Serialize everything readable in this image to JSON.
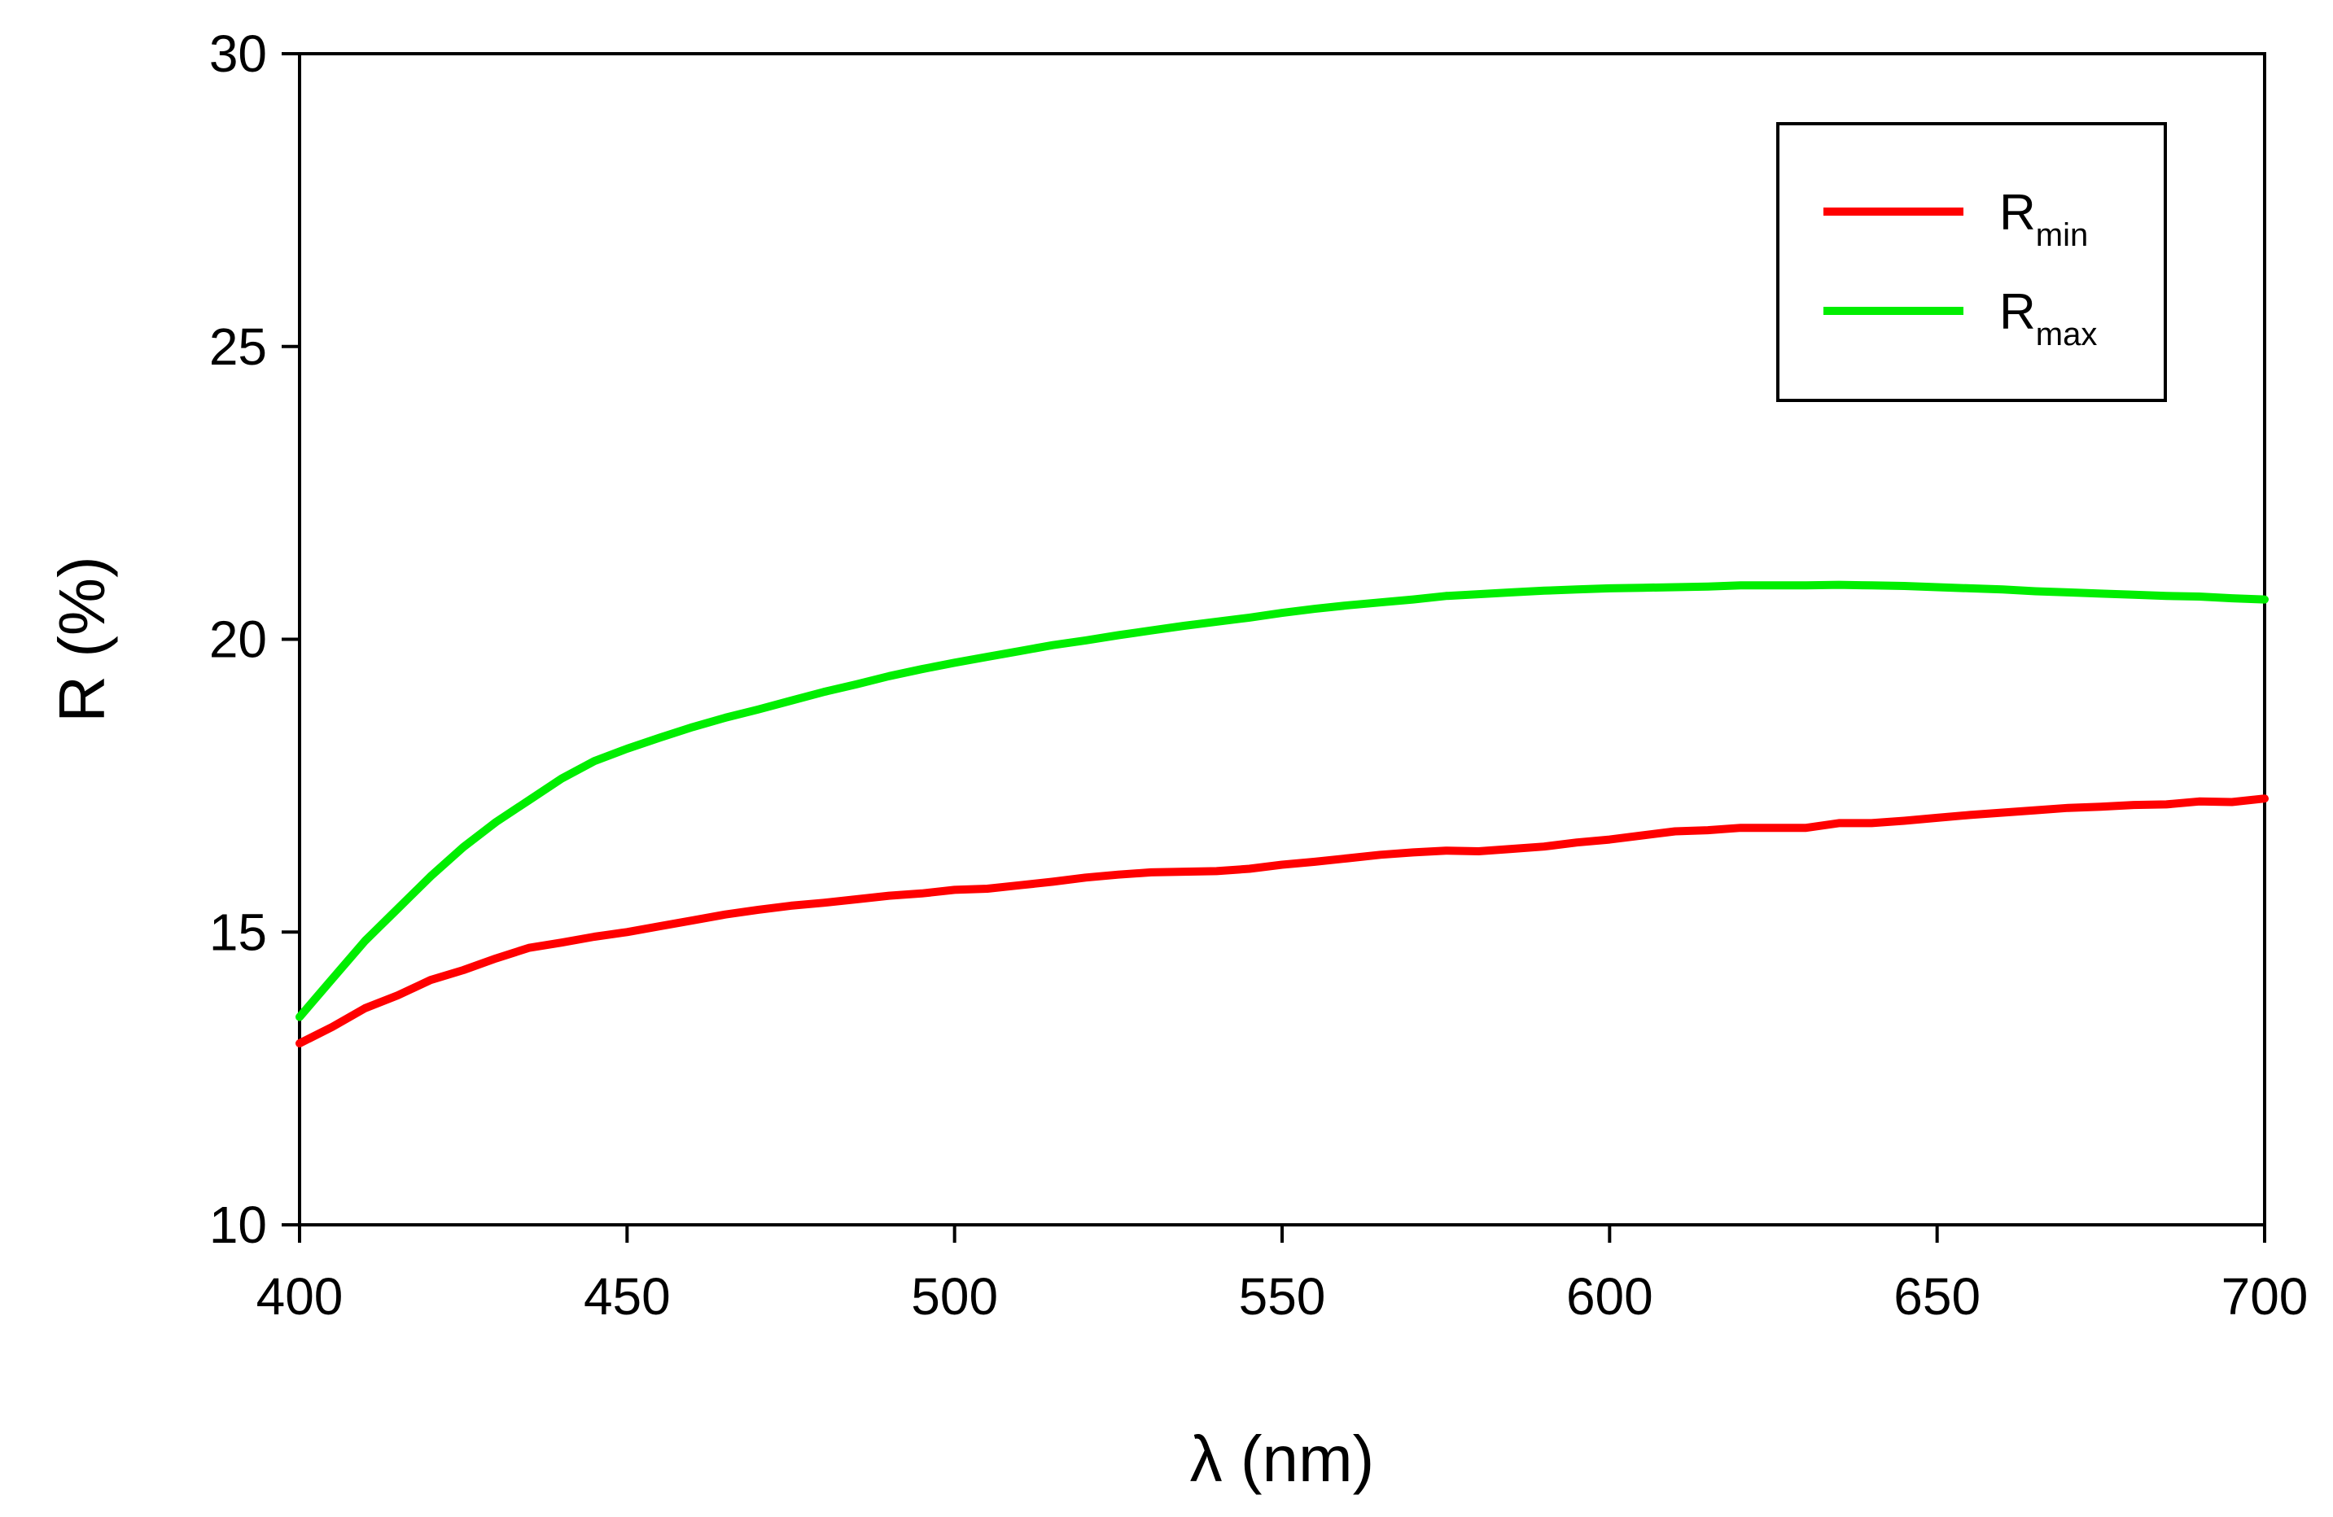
{
  "chart_data": {
    "type": "line",
    "xlabel": "λ (nm)",
    "ylabel": "R (%)",
    "xlim": [
      400,
      700
    ],
    "ylim": [
      10,
      30
    ],
    "xticks": [
      400,
      450,
      500,
      550,
      600,
      650,
      700
    ],
    "yticks": [
      10,
      15,
      20,
      25,
      30
    ],
    "grid": false,
    "legend_position": "top-right",
    "legend_entries": [
      {
        "base": "R",
        "sub": "min",
        "color": "#ff0000"
      },
      {
        "base": "R",
        "sub": "max",
        "color": "#00ee00"
      }
    ],
    "series": [
      {
        "name": "Rmin",
        "color": "#ff0000",
        "x": [
          400,
          405,
          410,
          415,
          420,
          425,
          430,
          435,
          440,
          445,
          450,
          455,
          460,
          465,
          470,
          475,
          480,
          485,
          490,
          495,
          500,
          505,
          510,
          515,
          520,
          525,
          530,
          535,
          540,
          545,
          550,
          555,
          560,
          565,
          570,
          575,
          580,
          585,
          590,
          595,
          600,
          605,
          610,
          615,
          620,
          625,
          630,
          635,
          640,
          645,
          650,
          655,
          660,
          665,
          670,
          675,
          680,
          685,
          690,
          695,
          700
        ],
        "y": [
          13.1,
          13.38,
          13.7,
          13.92,
          14.18,
          14.35,
          14.55,
          14.73,
          14.82,
          14.92,
          15.0,
          15.1,
          15.2,
          15.3,
          15.38,
          15.45,
          15.5,
          15.56,
          15.62,
          15.66,
          15.72,
          15.74,
          15.8,
          15.86,
          15.93,
          15.98,
          16.02,
          16.03,
          16.04,
          16.08,
          16.15,
          16.2,
          16.26,
          16.32,
          16.36,
          16.39,
          16.38,
          16.42,
          16.46,
          16.53,
          16.58,
          16.65,
          16.72,
          16.74,
          16.78,
          16.78,
          16.78,
          16.86,
          16.86,
          16.9,
          16.95,
          17.0,
          17.04,
          17.08,
          17.12,
          17.14,
          17.17,
          17.18,
          17.23,
          17.22,
          17.28
        ]
      },
      {
        "name": "Rmax",
        "color": "#00ee00",
        "x": [
          400,
          405,
          410,
          415,
          420,
          425,
          430,
          435,
          440,
          445,
          450,
          455,
          460,
          465,
          470,
          475,
          480,
          485,
          490,
          495,
          500,
          505,
          510,
          515,
          520,
          525,
          530,
          535,
          540,
          545,
          550,
          555,
          560,
          565,
          570,
          575,
          580,
          585,
          590,
          595,
          600,
          605,
          610,
          615,
          620,
          625,
          630,
          635,
          640,
          645,
          650,
          655,
          660,
          665,
          670,
          675,
          680,
          685,
          690,
          695,
          700
        ],
        "y": [
          13.55,
          14.2,
          14.85,
          15.4,
          15.95,
          16.45,
          16.88,
          17.25,
          17.62,
          17.92,
          18.13,
          18.32,
          18.5,
          18.66,
          18.8,
          18.95,
          19.1,
          19.23,
          19.37,
          19.49,
          19.6,
          19.7,
          19.8,
          19.9,
          19.98,
          20.07,
          20.15,
          20.23,
          20.3,
          20.37,
          20.45,
          20.52,
          20.58,
          20.63,
          20.68,
          20.74,
          20.77,
          20.8,
          20.83,
          20.85,
          20.87,
          20.88,
          20.89,
          20.9,
          20.92,
          20.92,
          20.92,
          20.93,
          20.92,
          20.91,
          20.89,
          20.87,
          20.85,
          20.82,
          20.8,
          20.78,
          20.76,
          20.74,
          20.73,
          20.7,
          20.68
        ]
      }
    ]
  }
}
